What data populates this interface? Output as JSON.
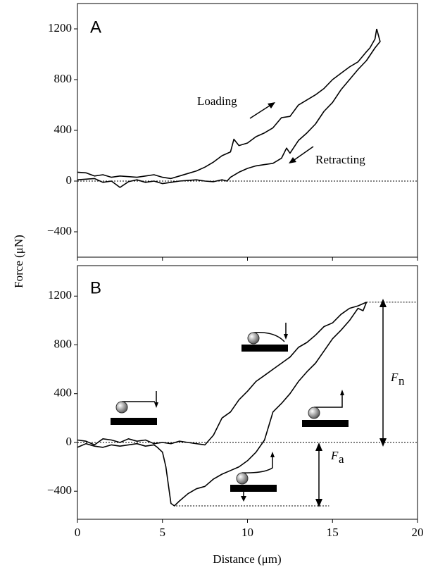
{
  "chart_data": [
    {
      "type": "line",
      "panel_label": "A",
      "ylabel": "Force (μN)",
      "xlim": [
        0,
        20
      ],
      "xticks": [
        0,
        5,
        10,
        15,
        20
      ],
      "ylim": [
        -600,
        1400
      ],
      "yticks": [
        {
          "value": -400,
          "label": "−400"
        },
        0,
        400,
        800,
        1200
      ],
      "hline": 0,
      "annotations": [
        "Loading",
        "Retracting"
      ],
      "series": [
        {
          "color": "#000000",
          "x": [
            0,
            0.5,
            1,
            1.5,
            2,
            2.5,
            3,
            3.5,
            4,
            4.5,
            5,
            5.5,
            6,
            6.5,
            7,
            7.5,
            8,
            8.5,
            9,
            9.2,
            9.5,
            10,
            10.5,
            11,
            11.5,
            12,
            12.5,
            13,
            13.5,
            14,
            14.5,
            15,
            15.5,
            16,
            16.5,
            17,
            17.2,
            17.5,
            17.6
          ],
          "values": [
            70,
            65,
            40,
            50,
            30,
            40,
            35,
            30,
            40,
            50,
            30,
            20,
            40,
            60,
            80,
            110,
            150,
            200,
            230,
            330,
            280,
            300,
            350,
            380,
            420,
            500,
            510,
            600,
            640,
            680,
            730,
            800,
            850,
            900,
            940,
            1020,
            1050,
            1120,
            1200
          ]
        },
        {
          "color": "#000000",
          "x": [
            17.6,
            17.8,
            17.5,
            17,
            16.5,
            16,
            15.5,
            15,
            14.5,
            14,
            13.5,
            13,
            12.5,
            12.3,
            12,
            11.5,
            11,
            10.5,
            10,
            9.5,
            9,
            8.8,
            8.5,
            8,
            7.5,
            7,
            6.5,
            6,
            5.5,
            5,
            4.5,
            4,
            3.5,
            3,
            2.5,
            2,
            1.5,
            1,
            0.5,
            0
          ],
          "values": [
            1200,
            1100,
            1050,
            950,
            880,
            800,
            720,
            620,
            550,
            450,
            380,
            320,
            220,
            260,
            180,
            140,
            130,
            120,
            100,
            70,
            30,
            0,
            10,
            -5,
            0,
            10,
            5,
            0,
            -10,
            -20,
            0,
            -10,
            10,
            -5,
            -50,
            0,
            -10,
            20,
            15,
            10
          ]
        }
      ]
    },
    {
      "type": "line",
      "panel_label": "B",
      "xlabel": "Distance (μm)",
      "xlim": [
        0,
        20
      ],
      "xticks": [
        0,
        5,
        10,
        15,
        20
      ],
      "ylim": [
        -630,
        1450
      ],
      "yticks": [
        {
          "value": -400,
          "label": "−400"
        },
        0,
        400,
        800,
        1200
      ],
      "hline": 0,
      "reference_lines": [
        {
          "y": 1150,
          "x0": 17,
          "x1": 20
        },
        {
          "y": -520,
          "x0": 5.8,
          "x1": 14.8
        }
      ],
      "force_labels": [
        {
          "symbol": "F",
          "sub": "n"
        },
        {
          "symbol": "F",
          "sub": "a"
        }
      ],
      "series": [
        {
          "color": "#000000",
          "x": [
            0,
            0.5,
            1,
            1.5,
            2,
            2.5,
            3,
            3.5,
            4,
            4.5,
            5,
            5.5,
            6,
            6.5,
            7,
            7.5,
            8,
            8.5,
            9,
            9.5,
            10,
            10.5,
            11,
            11.5,
            12,
            12.5,
            13,
            13.5,
            14,
            14.5,
            15,
            15.5,
            16,
            16.5,
            17
          ],
          "values": [
            20,
            10,
            -20,
            30,
            20,
            0,
            30,
            10,
            20,
            -10,
            0,
            -10,
            10,
            0,
            -10,
            -20,
            60,
            200,
            250,
            350,
            420,
            500,
            550,
            600,
            650,
            700,
            780,
            820,
            880,
            950,
            980,
            1050,
            1100,
            1120,
            1150
          ]
        },
        {
          "color": "#000000",
          "x": [
            17,
            16.8,
            16.5,
            16,
            15.5,
            15,
            14.5,
            14,
            13.5,
            13,
            12.5,
            12,
            11.5,
            11,
            10.5,
            10,
            9.5,
            9,
            8.5,
            8,
            7.5,
            7,
            6.5,
            6,
            5.7,
            5.5,
            5.2,
            5,
            4.7,
            4.5,
            4,
            3.5,
            3,
            2.5,
            2,
            1.5,
            1,
            0.5,
            0
          ],
          "values": [
            1150,
            1080,
            1100,
            1000,
            920,
            850,
            750,
            650,
            580,
            500,
            400,
            320,
            250,
            20,
            -80,
            -150,
            -200,
            -230,
            -260,
            -300,
            -360,
            -380,
            -420,
            -480,
            -520,
            -500,
            -200,
            -80,
            -40,
            -20,
            -30,
            -10,
            -20,
            -30,
            -20,
            -40,
            -30,
            -10,
            -40
          ]
        }
      ]
    }
  ]
}
